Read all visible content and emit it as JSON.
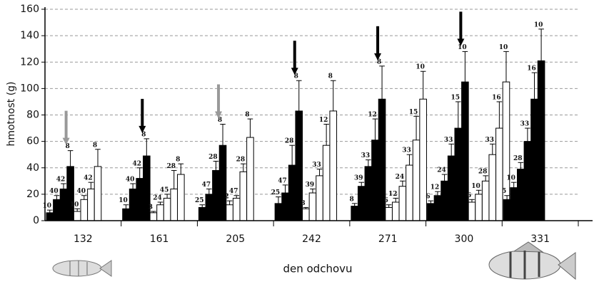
{
  "chart_data": {
    "type": "grouped-bar",
    "ylabel": "hmotnost (g)",
    "xlabel": "den odchovu",
    "ylim": [
      0,
      160
    ],
    "yticks": [
      0,
      20,
      40,
      60,
      80,
      100,
      120,
      140,
      160
    ],
    "grid": true,
    "colors": {
      "black": "#000000",
      "white": "#ffffff"
    },
    "groups": [
      {
        "label": "132",
        "arrow": "#999999",
        "black": {
          "values": [
            6,
            16,
            24,
            41
          ],
          "errors": [
            2,
            3,
            4,
            12
          ],
          "n": [
            10,
            40,
            42,
            8
          ]
        },
        "white": {
          "values": [
            7,
            16,
            24,
            41
          ],
          "errors": [
            2,
            3,
            5,
            13
          ],
          "n": [
            10,
            40,
            42,
            8
          ]
        }
      },
      {
        "label": "161",
        "arrow": "#000000",
        "black": {
          "values": [
            9,
            24,
            32,
            49
          ],
          "errors": [
            3,
            4,
            8,
            13
          ],
          "n": [
            10,
            40,
            42,
            8
          ]
        },
        "white": {
          "values": [
            6,
            12,
            17,
            24,
            35
          ],
          "errors": [
            1,
            2,
            3,
            14,
            8
          ],
          "n": [
            3,
            24,
            45,
            28,
            8
          ]
        }
      },
      {
        "label": "205",
        "arrow": "#999999",
        "black": {
          "values": [
            10,
            20,
            38,
            57
          ],
          "errors": [
            2,
            4,
            7,
            16
          ],
          "n": [
            25,
            47,
            28,
            8
          ]
        },
        "white": {
          "values": [
            12,
            17,
            37,
            63
          ],
          "errors": [
            3,
            2,
            6,
            14
          ],
          "n": [
            2,
            47,
            28,
            8
          ]
        }
      },
      {
        "label": "242",
        "arrow": "#000000",
        "black": {
          "values": [
            13,
            21,
            42,
            83
          ],
          "errors": [
            5,
            6,
            15,
            23
          ],
          "n": [
            25,
            47,
            28,
            8
          ]
        },
        "white": {
          "values": [
            9,
            21,
            34,
            57,
            83
          ],
          "errors": [
            1,
            3,
            5,
            16,
            23
          ],
          "n": [
            8,
            39,
            33,
            12,
            8
          ]
        }
      },
      {
        "label": "271",
        "arrow": "#000000",
        "black": {
          "values": [
            11,
            26,
            41,
            61,
            92
          ],
          "errors": [
            2,
            3,
            5,
            16,
            25
          ],
          "n": [
            8,
            39,
            33,
            12,
            8
          ]
        },
        "white": {
          "values": [
            10,
            14,
            26,
            42,
            61,
            92
          ],
          "errors": [
            2,
            3,
            4,
            8,
            18,
            21
          ],
          "n": [
            6,
            12,
            24,
            33,
            15,
            10
          ]
        }
      },
      {
        "label": "300",
        "arrow": "#000000",
        "black": {
          "values": [
            13,
            19,
            30,
            49,
            70,
            105
          ],
          "errors": [
            2,
            3,
            5,
            9,
            20,
            23
          ],
          "n": [
            6,
            12,
            24,
            33,
            15,
            10
          ]
        },
        "white": {
          "values": [
            14,
            20,
            30,
            50,
            70,
            105
          ],
          "errors": [
            2,
            3,
            4,
            8,
            20,
            23
          ],
          "n": [
            6,
            10,
            28,
            33,
            16,
            10
          ]
        }
      },
      {
        "label": "331",
        "arrow": null,
        "black": {
          "values": [
            16,
            25,
            39,
            60,
            92,
            121
          ],
          "errors": [
            3,
            4,
            5,
            10,
            20,
            24
          ],
          "n": [
            5,
            10,
            28,
            33,
            16,
            10
          ]
        },
        "white": {
          "values": [],
          "errors": [],
          "n": []
        }
      }
    ]
  }
}
